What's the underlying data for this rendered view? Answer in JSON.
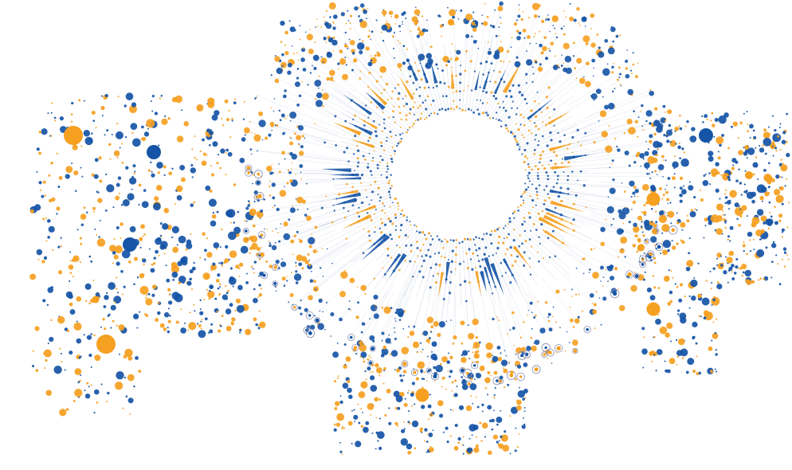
{
  "diagram": {
    "type": "radial-node-link-graph",
    "background": "#ffffff",
    "node_colors": {
      "blue": "#1554a6",
      "orange": "#f5a020",
      "ring_outline": "#8a8fb0"
    },
    "edge_colors": {
      "blue": "#1554a6",
      "orange": "#f5a020",
      "faint": "#9aa8c8"
    },
    "labels_shown": false
  }
}
